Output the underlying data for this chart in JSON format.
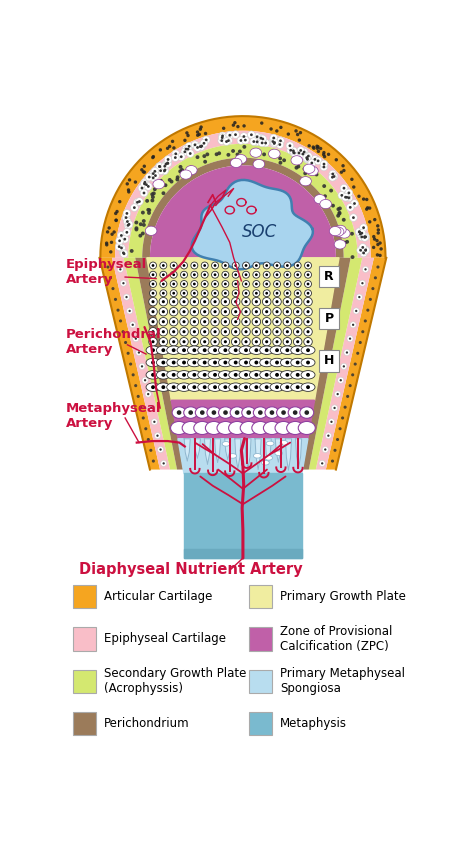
{
  "bg_color": "#ffffff",
  "colors": {
    "articular_cartilage": "#F5A520",
    "epiphyseal_cartilage": "#F9BEC8",
    "secondary_growth_plate": "#D4E870",
    "perichondrium": "#9B7B5A",
    "primary_growth_plate": "#F0EDA0",
    "zpc_purple": "#C060A8",
    "primary_metaphyseal": "#B8DDEF",
    "metaphysis_teal": "#7ABACF",
    "metaphysis_dark": "#6AAABF",
    "soc": "#A8D4EE",
    "soc_border": "#4080B0",
    "artery": "#CC1040",
    "label_artery": "#CC1040",
    "white": "#ffffff",
    "black": "#000000"
  },
  "legend_items_left": [
    {
      "color": "#F5A520",
      "label": "Articular Cartilage"
    },
    {
      "color": "#F9BEC8",
      "label": "Epiphyseal Cartilage"
    },
    {
      "color": "#D4E870",
      "label": "Secondary Growth Plate\n(Acrophyssis)"
    },
    {
      "color": "#9B7B5A",
      "label": "Perichondrium"
    }
  ],
  "legend_items_right": [
    {
      "color": "#F0EDA0",
      "label": "Primary Growth Plate"
    },
    {
      "color": "#C060A8",
      "label": "Zone of Provisional\nCalcification (ZPC)"
    },
    {
      "color": "#B8DDEF",
      "label": "Primary Metaphyseal\nSpongiosa"
    },
    {
      "color": "#7ABACF",
      "label": "Metaphysis"
    }
  ]
}
